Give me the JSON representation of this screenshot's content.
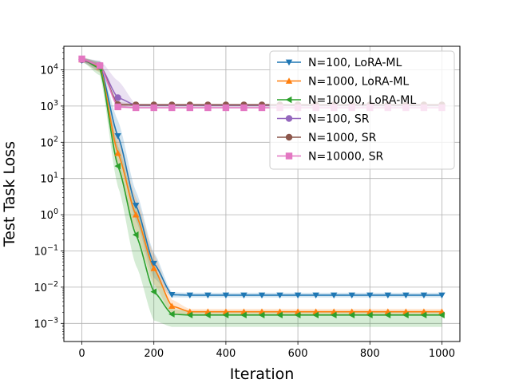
{
  "chart_data": {
    "type": "line",
    "title": "",
    "xlabel": "Iteration",
    "ylabel": "Test Task Loss",
    "xlim": [
      -50,
      1050
    ],
    "ylim_log10": [
      -3.5,
      4.65
    ],
    "xticks": [
      0,
      200,
      400,
      600,
      800,
      1000
    ],
    "xtick_labels": [
      "0",
      "200",
      "400",
      "600",
      "800",
      "1000"
    ],
    "ytick_exponents": [
      -3,
      -2,
      -1,
      0,
      1,
      2,
      3,
      4
    ],
    "grid": true,
    "legend_position": "top-right",
    "series": [
      {
        "name": "N=100, LoRA-ML",
        "color": "#1f77b4",
        "marker": "triangle-down",
        "x": [
          0,
          50,
          100,
          150,
          200,
          250,
          300,
          350,
          400,
          450,
          500,
          550,
          600,
          650,
          700,
          750,
          800,
          850,
          900,
          950,
          1000
        ],
        "y": [
          18000,
          13000,
          150,
          1.8,
          0.045,
          0.0062,
          0.006,
          0.006,
          0.006,
          0.006,
          0.006,
          0.006,
          0.006,
          0.006,
          0.006,
          0.006,
          0.006,
          0.006,
          0.006,
          0.006,
          0.006
        ],
        "band_lower": [
          16000,
          9000,
          60,
          0.7,
          0.018,
          0.0052,
          0.0052,
          0.0052,
          0.0052,
          0.0052,
          0.0052,
          0.0052,
          0.0052,
          0.0052,
          0.0052,
          0.0052,
          0.0052,
          0.0052,
          0.0052,
          0.0052,
          0.0052
        ],
        "band_upper": [
          21000,
          17000,
          400,
          4.5,
          0.09,
          0.0072,
          0.007,
          0.007,
          0.007,
          0.007,
          0.007,
          0.007,
          0.007,
          0.007,
          0.007,
          0.007,
          0.007,
          0.007,
          0.007,
          0.007,
          0.007
        ]
      },
      {
        "name": "N=1000, LoRA-ML",
        "color": "#ff7f0e",
        "marker": "triangle-up",
        "x": [
          0,
          50,
          100,
          150,
          200,
          250,
          300,
          350,
          400,
          450,
          500,
          550,
          600,
          650,
          700,
          750,
          800,
          850,
          900,
          950,
          1000
        ],
        "y": [
          19000,
          12000,
          50,
          1.0,
          0.033,
          0.003,
          0.0021,
          0.0021,
          0.0021,
          0.0021,
          0.0021,
          0.0021,
          0.0021,
          0.0021,
          0.0021,
          0.0021,
          0.0021,
          0.0021,
          0.0021,
          0.0021,
          0.0021
        ],
        "band_lower": [
          17000,
          8500,
          20,
          0.35,
          0.012,
          0.0018,
          0.0018,
          0.0018,
          0.0018,
          0.0018,
          0.0018,
          0.0018,
          0.0018,
          0.0018,
          0.0018,
          0.0018,
          0.0018,
          0.0018,
          0.0018,
          0.0018,
          0.0018
        ],
        "band_upper": [
          21500,
          16000,
          150,
          3.0,
          0.08,
          0.0045,
          0.0025,
          0.0025,
          0.0025,
          0.0025,
          0.0025,
          0.0025,
          0.0025,
          0.0025,
          0.0025,
          0.0025,
          0.0025,
          0.0025,
          0.0025,
          0.0025,
          0.0025
        ]
      },
      {
        "name": "N=10000, LoRA-ML",
        "color": "#2ca02c",
        "marker": "triangle-left",
        "x": [
          0,
          50,
          100,
          150,
          200,
          250,
          300,
          350,
          400,
          450,
          500,
          550,
          600,
          650,
          700,
          750,
          800,
          850,
          900,
          950,
          1000
        ],
        "y": [
          20000,
          11000,
          22,
          0.28,
          0.0075,
          0.0018,
          0.0017,
          0.0017,
          0.0017,
          0.0017,
          0.0017,
          0.0017,
          0.0017,
          0.0017,
          0.0017,
          0.0017,
          0.0017,
          0.0017,
          0.0017,
          0.0017,
          0.0017
        ],
        "band_lower": [
          17000,
          7000,
          6,
          0.04,
          0.0012,
          0.0008,
          0.0008,
          0.0008,
          0.0008,
          0.0008,
          0.0008,
          0.0008,
          0.0008,
          0.0008,
          0.0008,
          0.0008,
          0.0008,
          0.0008,
          0.0008,
          0.0008,
          0.0008
        ],
        "band_upper": [
          22000,
          17000,
          80,
          1.5,
          0.04,
          0.0025,
          0.0022,
          0.0022,
          0.0022,
          0.0022,
          0.0022,
          0.0022,
          0.0022,
          0.0022,
          0.0022,
          0.0022,
          0.0022,
          0.0022,
          0.0022,
          0.0022,
          0.0022
        ]
      },
      {
        "name": "N=100, SR",
        "color": "#9467bd",
        "marker": "circle",
        "x": [
          0,
          50,
          100,
          150,
          200,
          250,
          300,
          350,
          400,
          450,
          500,
          550,
          600,
          650,
          700,
          750,
          800,
          850,
          900,
          950,
          1000
        ],
        "y": [
          19000,
          13000,
          1700,
          1050,
          1050,
          1050,
          1050,
          1050,
          1050,
          1050,
          1050,
          1050,
          1050,
          1050,
          1050,
          1050,
          1050,
          1050,
          1050,
          1050,
          1050
        ],
        "band_lower": [
          17000,
          10000,
          1000,
          950,
          950,
          950,
          950,
          950,
          950,
          950,
          950,
          950,
          950,
          950,
          950,
          950,
          950,
          950,
          950,
          950,
          950
        ],
        "band_upper": [
          21000,
          18000,
          5000,
          1150,
          1150,
          1150,
          1150,
          1150,
          1150,
          1150,
          1150,
          1150,
          1150,
          1150,
          1150,
          1150,
          1150,
          1150,
          1150,
          1150,
          1150
        ]
      },
      {
        "name": "N=1000, SR",
        "color": "#8c564b",
        "marker": "circle",
        "x": [
          0,
          50,
          100,
          150,
          200,
          250,
          300,
          350,
          400,
          450,
          500,
          550,
          600,
          650,
          700,
          750,
          800,
          850,
          900,
          950,
          1000
        ],
        "y": [
          19500,
          13000,
          1100,
          1080,
          1080,
          1080,
          1080,
          1080,
          1080,
          1080,
          1080,
          1080,
          1080,
          1080,
          1080,
          1080,
          1080,
          1080,
          1080,
          1080,
          1080
        ],
        "band_lower": [
          18000,
          11000,
          1000,
          1000,
          1000,
          1000,
          1000,
          1000,
          1000,
          1000,
          1000,
          1000,
          1000,
          1000,
          1000,
          1000,
          1000,
          1000,
          1000,
          1000,
          1000
        ],
        "band_upper": [
          21000,
          15000,
          1300,
          1160,
          1160,
          1160,
          1160,
          1160,
          1160,
          1160,
          1160,
          1160,
          1160,
          1160,
          1160,
          1160,
          1160,
          1160,
          1160,
          1160,
          1160
        ]
      },
      {
        "name": "N=10000, SR",
        "color": "#e377c2",
        "marker": "square",
        "x": [
          0,
          50,
          100,
          150,
          200,
          250,
          300,
          350,
          400,
          450,
          500,
          550,
          600,
          650,
          700,
          750,
          800,
          850,
          900,
          950,
          1000
        ],
        "y": [
          20000,
          13000,
          950,
          900,
          900,
          900,
          900,
          900,
          900,
          900,
          900,
          900,
          900,
          900,
          900,
          900,
          900,
          900,
          900,
          900,
          900
        ],
        "band_lower": [
          18000,
          11000,
          850,
          850,
          850,
          850,
          850,
          850,
          850,
          850,
          850,
          850,
          850,
          850,
          850,
          850,
          850,
          850,
          850,
          850,
          850
        ],
        "band_upper": [
          22000,
          15000,
          1100,
          960,
          960,
          960,
          960,
          960,
          960,
          960,
          960,
          960,
          960,
          960,
          960,
          960,
          960,
          960,
          960,
          960,
          960
        ]
      }
    ]
  }
}
